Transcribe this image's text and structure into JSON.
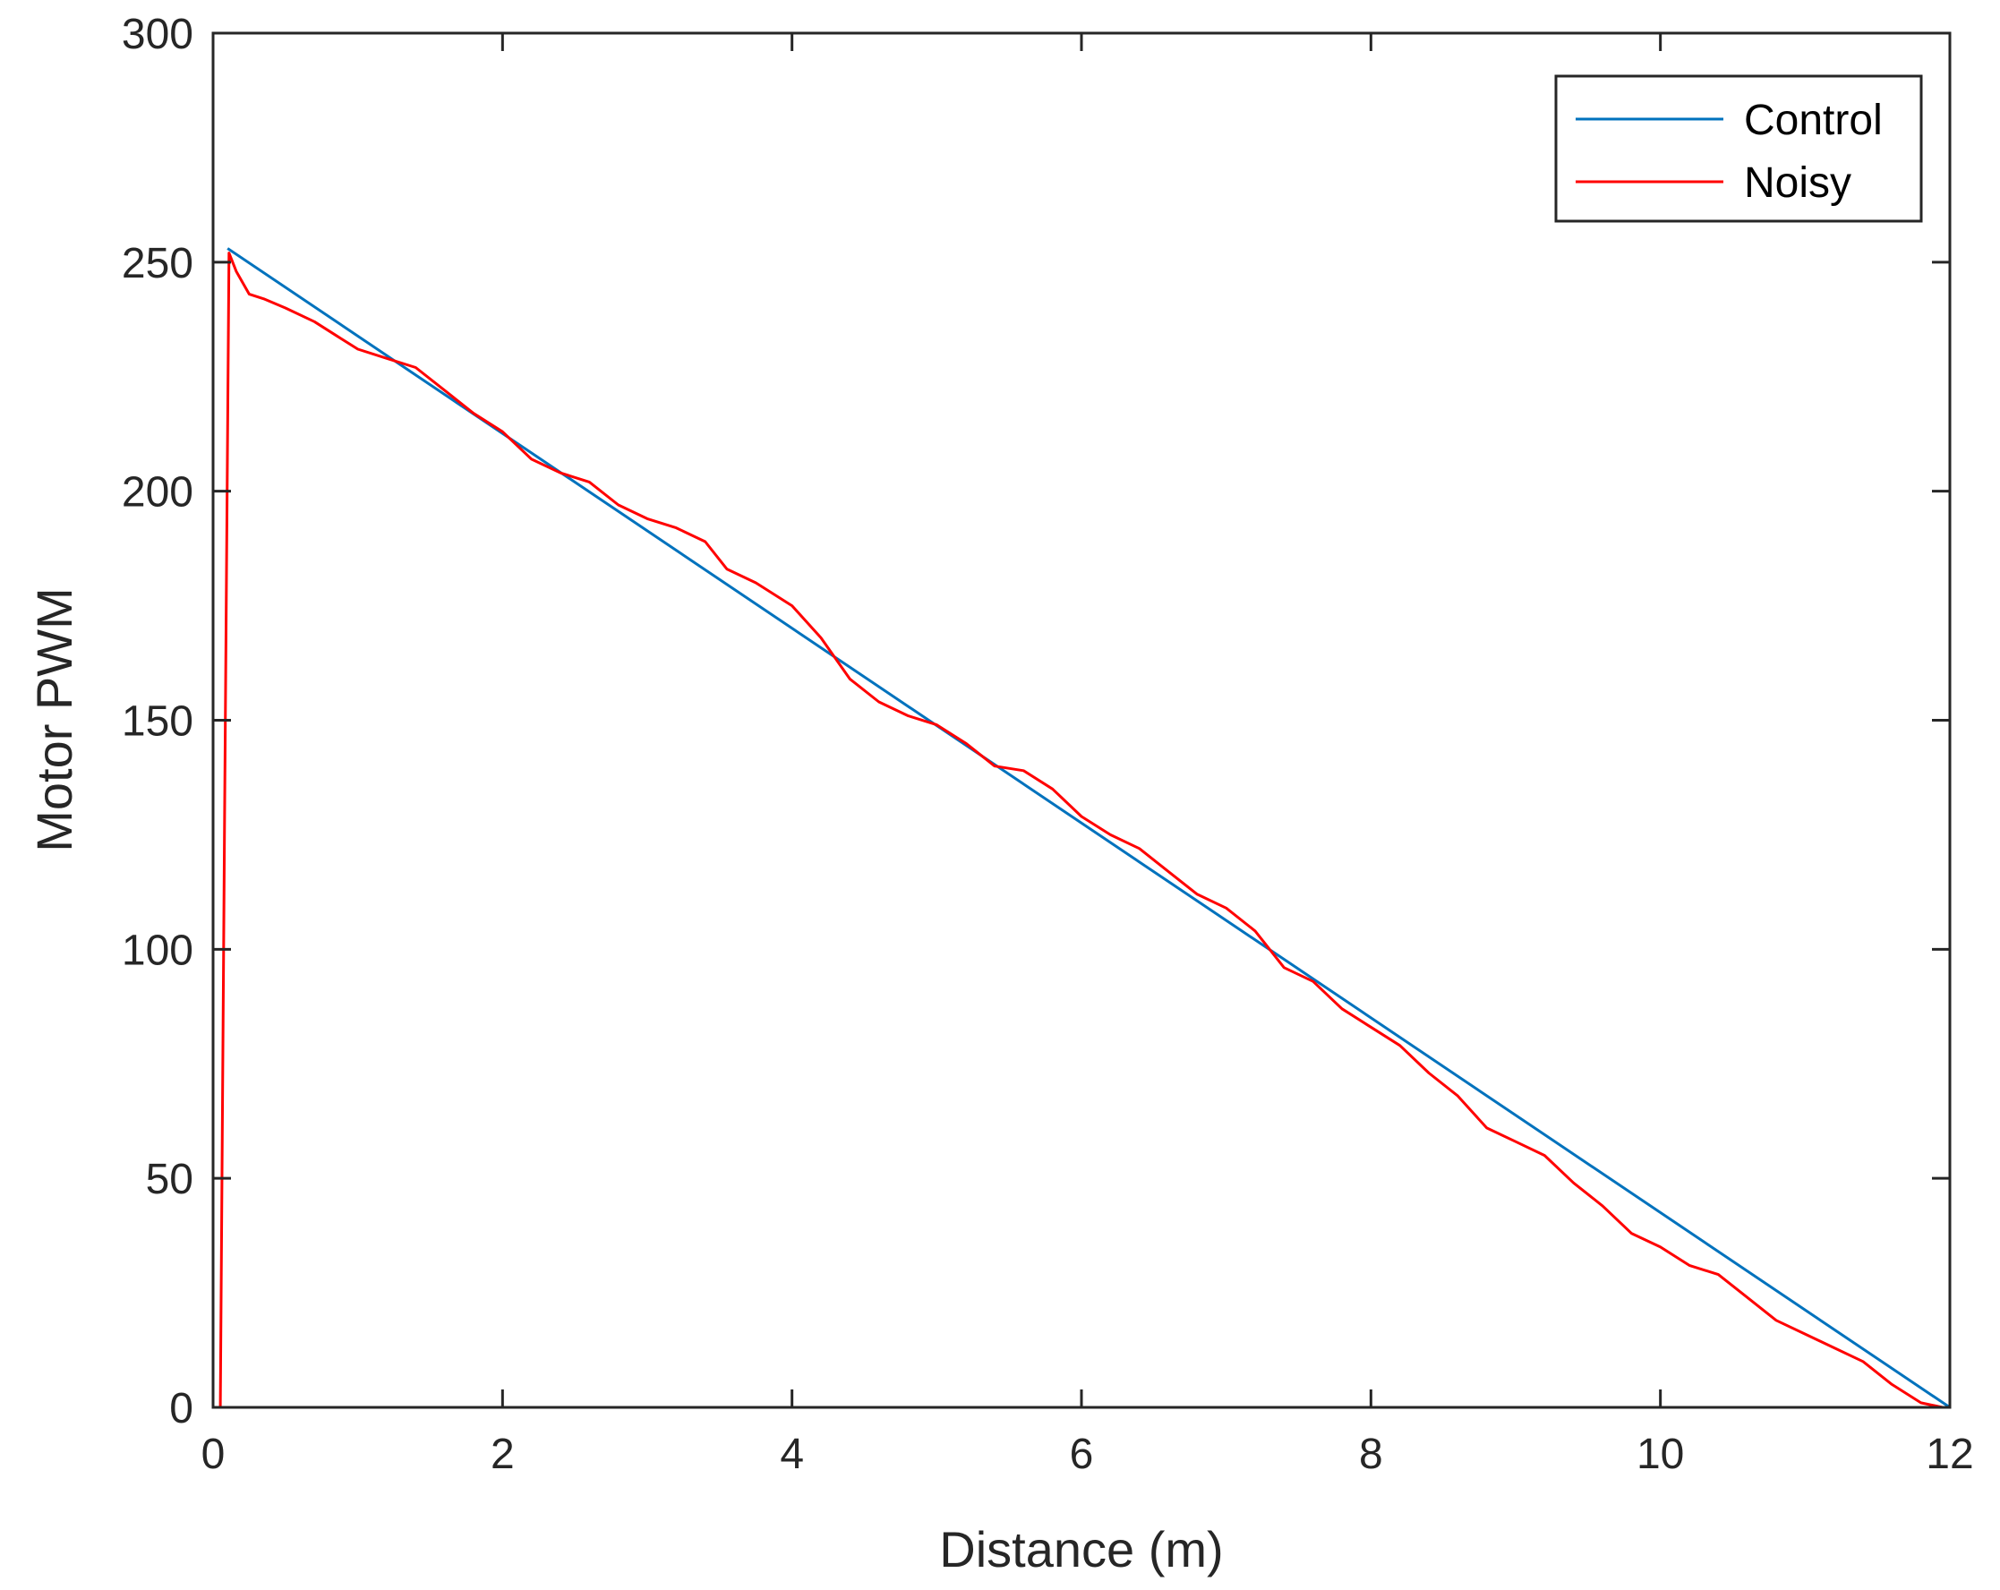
{
  "chart_data": {
    "type": "line",
    "xlabel": "Distance (m)",
    "ylabel": "Motor PWM",
    "xlim": [
      0,
      12
    ],
    "ylim": [
      0,
      300
    ],
    "x_ticks": [
      0,
      2,
      4,
      6,
      8,
      10,
      12
    ],
    "x_tick_labels": [
      "0",
      "2",
      "4",
      "6",
      "8",
      "10",
      "12"
    ],
    "y_ticks": [
      0,
      50,
      100,
      150,
      200,
      250,
      300
    ],
    "y_tick_labels": [
      "0",
      "50",
      "100",
      "150",
      "200",
      "250",
      "300"
    ],
    "grid": false,
    "legend": {
      "position": "top-right",
      "entries": [
        "Control",
        "Noisy"
      ]
    },
    "series": [
      {
        "name": "Control",
        "color": "#0072BD",
        "x": [
          0.1,
          12
        ],
        "y": [
          253,
          0
        ]
      },
      {
        "name": "Noisy",
        "color": "#FF0000",
        "x": [
          0.05,
          0.08,
          0.11,
          0.16,
          0.25,
          0.35,
          0.5,
          0.7,
          0.85,
          1.0,
          1.2,
          1.4,
          1.6,
          1.8,
          2.0,
          2.2,
          2.4,
          2.6,
          2.8,
          3.0,
          3.2,
          3.4,
          3.55,
          3.75,
          4.0,
          4.2,
          4.4,
          4.6,
          4.8,
          5.0,
          5.2,
          5.4,
          5.6,
          5.8,
          6.0,
          6.2,
          6.4,
          6.6,
          6.8,
          7.0,
          7.2,
          7.4,
          7.6,
          7.8,
          8.0,
          8.2,
          8.4,
          8.6,
          8.8,
          9.0,
          9.2,
          9.4,
          9.6,
          9.8,
          10.0,
          10.2,
          10.4,
          10.6,
          10.8,
          11.0,
          11.2,
          11.4,
          11.6,
          11.8,
          11.95
        ],
        "y": [
          0,
          130,
          252,
          248,
          243,
          242,
          240,
          237,
          234,
          231,
          229,
          227,
          222,
          217,
          213,
          207,
          204,
          202,
          197,
          194,
          192,
          189,
          183,
          180,
          175,
          168,
          159,
          154,
          151,
          149,
          145,
          140,
          139,
          135,
          129,
          125,
          122,
          117,
          112,
          109,
          104,
          96,
          93,
          87,
          83,
          79,
          73,
          68,
          61,
          58,
          55,
          49,
          44,
          38,
          35,
          31,
          29,
          24,
          19,
          16,
          13,
          10,
          5,
          1,
          0
        ]
      }
    ]
  }
}
